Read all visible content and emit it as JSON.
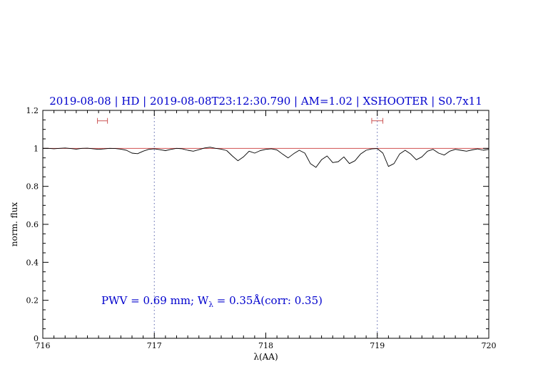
{
  "window": {
    "background": "#ffffff"
  },
  "title": "2019-08-08 | HD | 2019-08-08T23:12:30.790 | AM=1.02 | XSHOOTER | S0.7x11",
  "annotation": {
    "prefix": "PWV = 0.69 mm; W",
    "sub": "λ",
    "suffix": " = 0.35Å(corr: 0.35)"
  },
  "chart_data": {
    "type": "line",
    "title": "2019-08-08 | HD | 2019-08-08T23:12:30.790 | AM=1.02 | XSHOOTER | S0.7x11",
    "xlabel": "λ(AA)",
    "ylabel": "norm. flux",
    "xlim": [
      716,
      720
    ],
    "ylim": [
      0,
      1.2
    ],
    "grid": false,
    "legend": "none",
    "x_ticks": [
      716,
      717,
      718,
      719,
      720
    ],
    "x_tick_labels": [
      "716",
      "717",
      "718",
      "719",
      "720"
    ],
    "y_ticks": [
      0,
      0.2,
      0.4,
      0.6,
      0.8,
      1,
      1.2
    ],
    "y_tick_labels": [
      "0",
      "0.2",
      "0.4",
      "0.6",
      "0.8",
      "1",
      "1.2"
    ],
    "x_minor_step": 0.1,
    "y_minor_step": 0.05,
    "fit_range_lines_x": [
      717,
      719
    ],
    "continuum": {
      "y": 1.0,
      "color": "#d05050"
    },
    "interval_markers": [
      {
        "x1": 716.49,
        "x2": 716.58,
        "y": 1.145
      },
      {
        "x1": 718.95,
        "x2": 719.05,
        "y": 1.145
      }
    ],
    "series": [
      {
        "name": "observed spectrum",
        "color": "#000000",
        "x_start": 716.0,
        "x_step": 0.05,
        "flux": [
          1.0,
          1.0,
          0.998,
          1.0,
          1.002,
          0.999,
          0.996,
          1.0,
          1.001,
          0.998,
          0.995,
          0.997,
          1.0,
          0.999,
          0.996,
          0.99,
          0.975,
          0.972,
          0.985,
          0.995,
          0.998,
          0.993,
          0.988,
          0.995,
          1.0,
          0.998,
          0.99,
          0.985,
          0.993,
          1.002,
          1.006,
          1.0,
          0.996,
          0.988,
          0.96,
          0.935,
          0.955,
          0.985,
          0.975,
          0.988,
          0.995,
          0.998,
          0.992,
          0.97,
          0.95,
          0.972,
          0.99,
          0.975,
          0.92,
          0.9,
          0.94,
          0.96,
          0.925,
          0.93,
          0.955,
          0.92,
          0.935,
          0.97,
          0.99,
          0.997,
          0.999,
          0.975,
          0.905,
          0.92,
          0.97,
          0.99,
          0.97,
          0.94,
          0.955,
          0.985,
          0.995,
          0.975,
          0.965,
          0.985,
          0.995,
          0.99,
          0.985,
          0.992,
          0.997,
          0.99,
          0.995
        ]
      }
    ],
    "colors": {
      "title_text": "#0000cd",
      "annotation_text": "#0000cd",
      "marker": "#cc5555",
      "fit_range_line": "#5560aa",
      "axis": "#000000",
      "spectrum": "#000000"
    }
  }
}
